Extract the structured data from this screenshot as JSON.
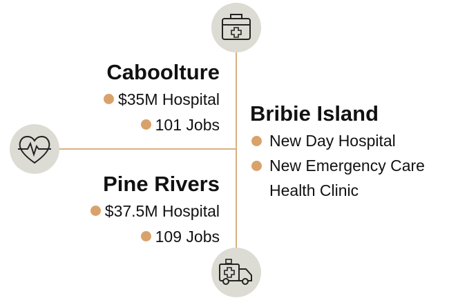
{
  "regions": [
    {
      "name": "Caboolture",
      "items": [
        "$35M Hospital",
        "101 Jobs"
      ]
    },
    {
      "name": "Pine Rivers",
      "items": [
        "$37.5M Hospital",
        "109 Jobs"
      ]
    },
    {
      "name": "Bribie Island",
      "items": [
        "New Day Hospital",
        "New Emergency Care Health Clinic"
      ]
    }
  ]
}
